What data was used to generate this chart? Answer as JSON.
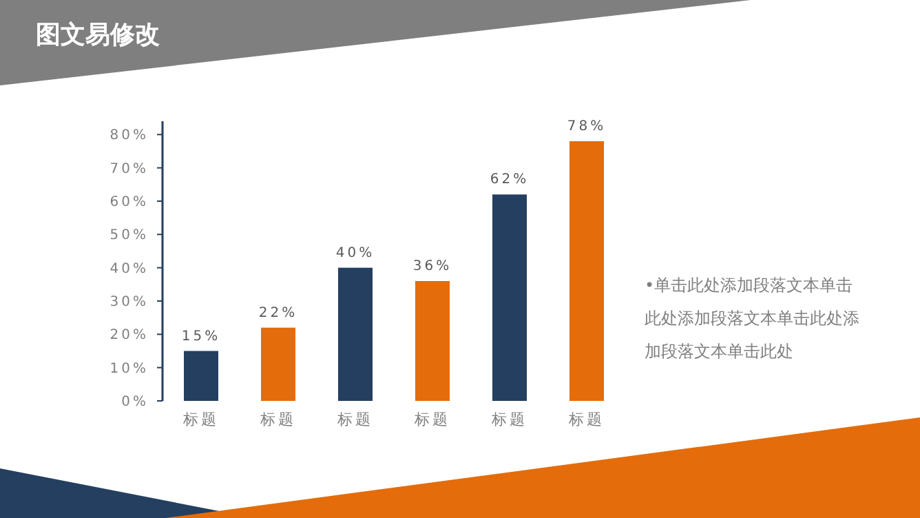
{
  "chart_data": {
    "type": "bar",
    "title": "图文易修改",
    "categories": [
      "标题",
      "标题",
      "标题",
      "标题",
      "标题",
      "标题"
    ],
    "values": [
      15,
      22,
      40,
      36,
      62,
      78
    ],
    "colors": [
      "#243f60",
      "#e46c0a",
      "#243f60",
      "#e46c0a",
      "#243f60",
      "#e46c0a"
    ],
    "value_labels": [
      "15%",
      "22%",
      "40%",
      "36%",
      "62%",
      "78%"
    ],
    "ylim": [
      0,
      84
    ],
    "yticks": [
      {
        "value": 0,
        "label": "0%"
      },
      {
        "value": 10,
        "label": "10%"
      },
      {
        "value": 20,
        "label": "20%"
      },
      {
        "value": 30,
        "label": "30%"
      },
      {
        "value": 40,
        "label": "40%"
      },
      {
        "value": 50,
        "label": "50%"
      },
      {
        "value": 60,
        "label": "60%"
      },
      {
        "value": 70,
        "label": "70%"
      },
      {
        "value": 80,
        "label": "80%"
      }
    ],
    "grid": false,
    "annotations": [
      "•单击此处添加段落文本单击此处添加段落文本单击此处添加段落文本单击此处"
    ]
  }
}
